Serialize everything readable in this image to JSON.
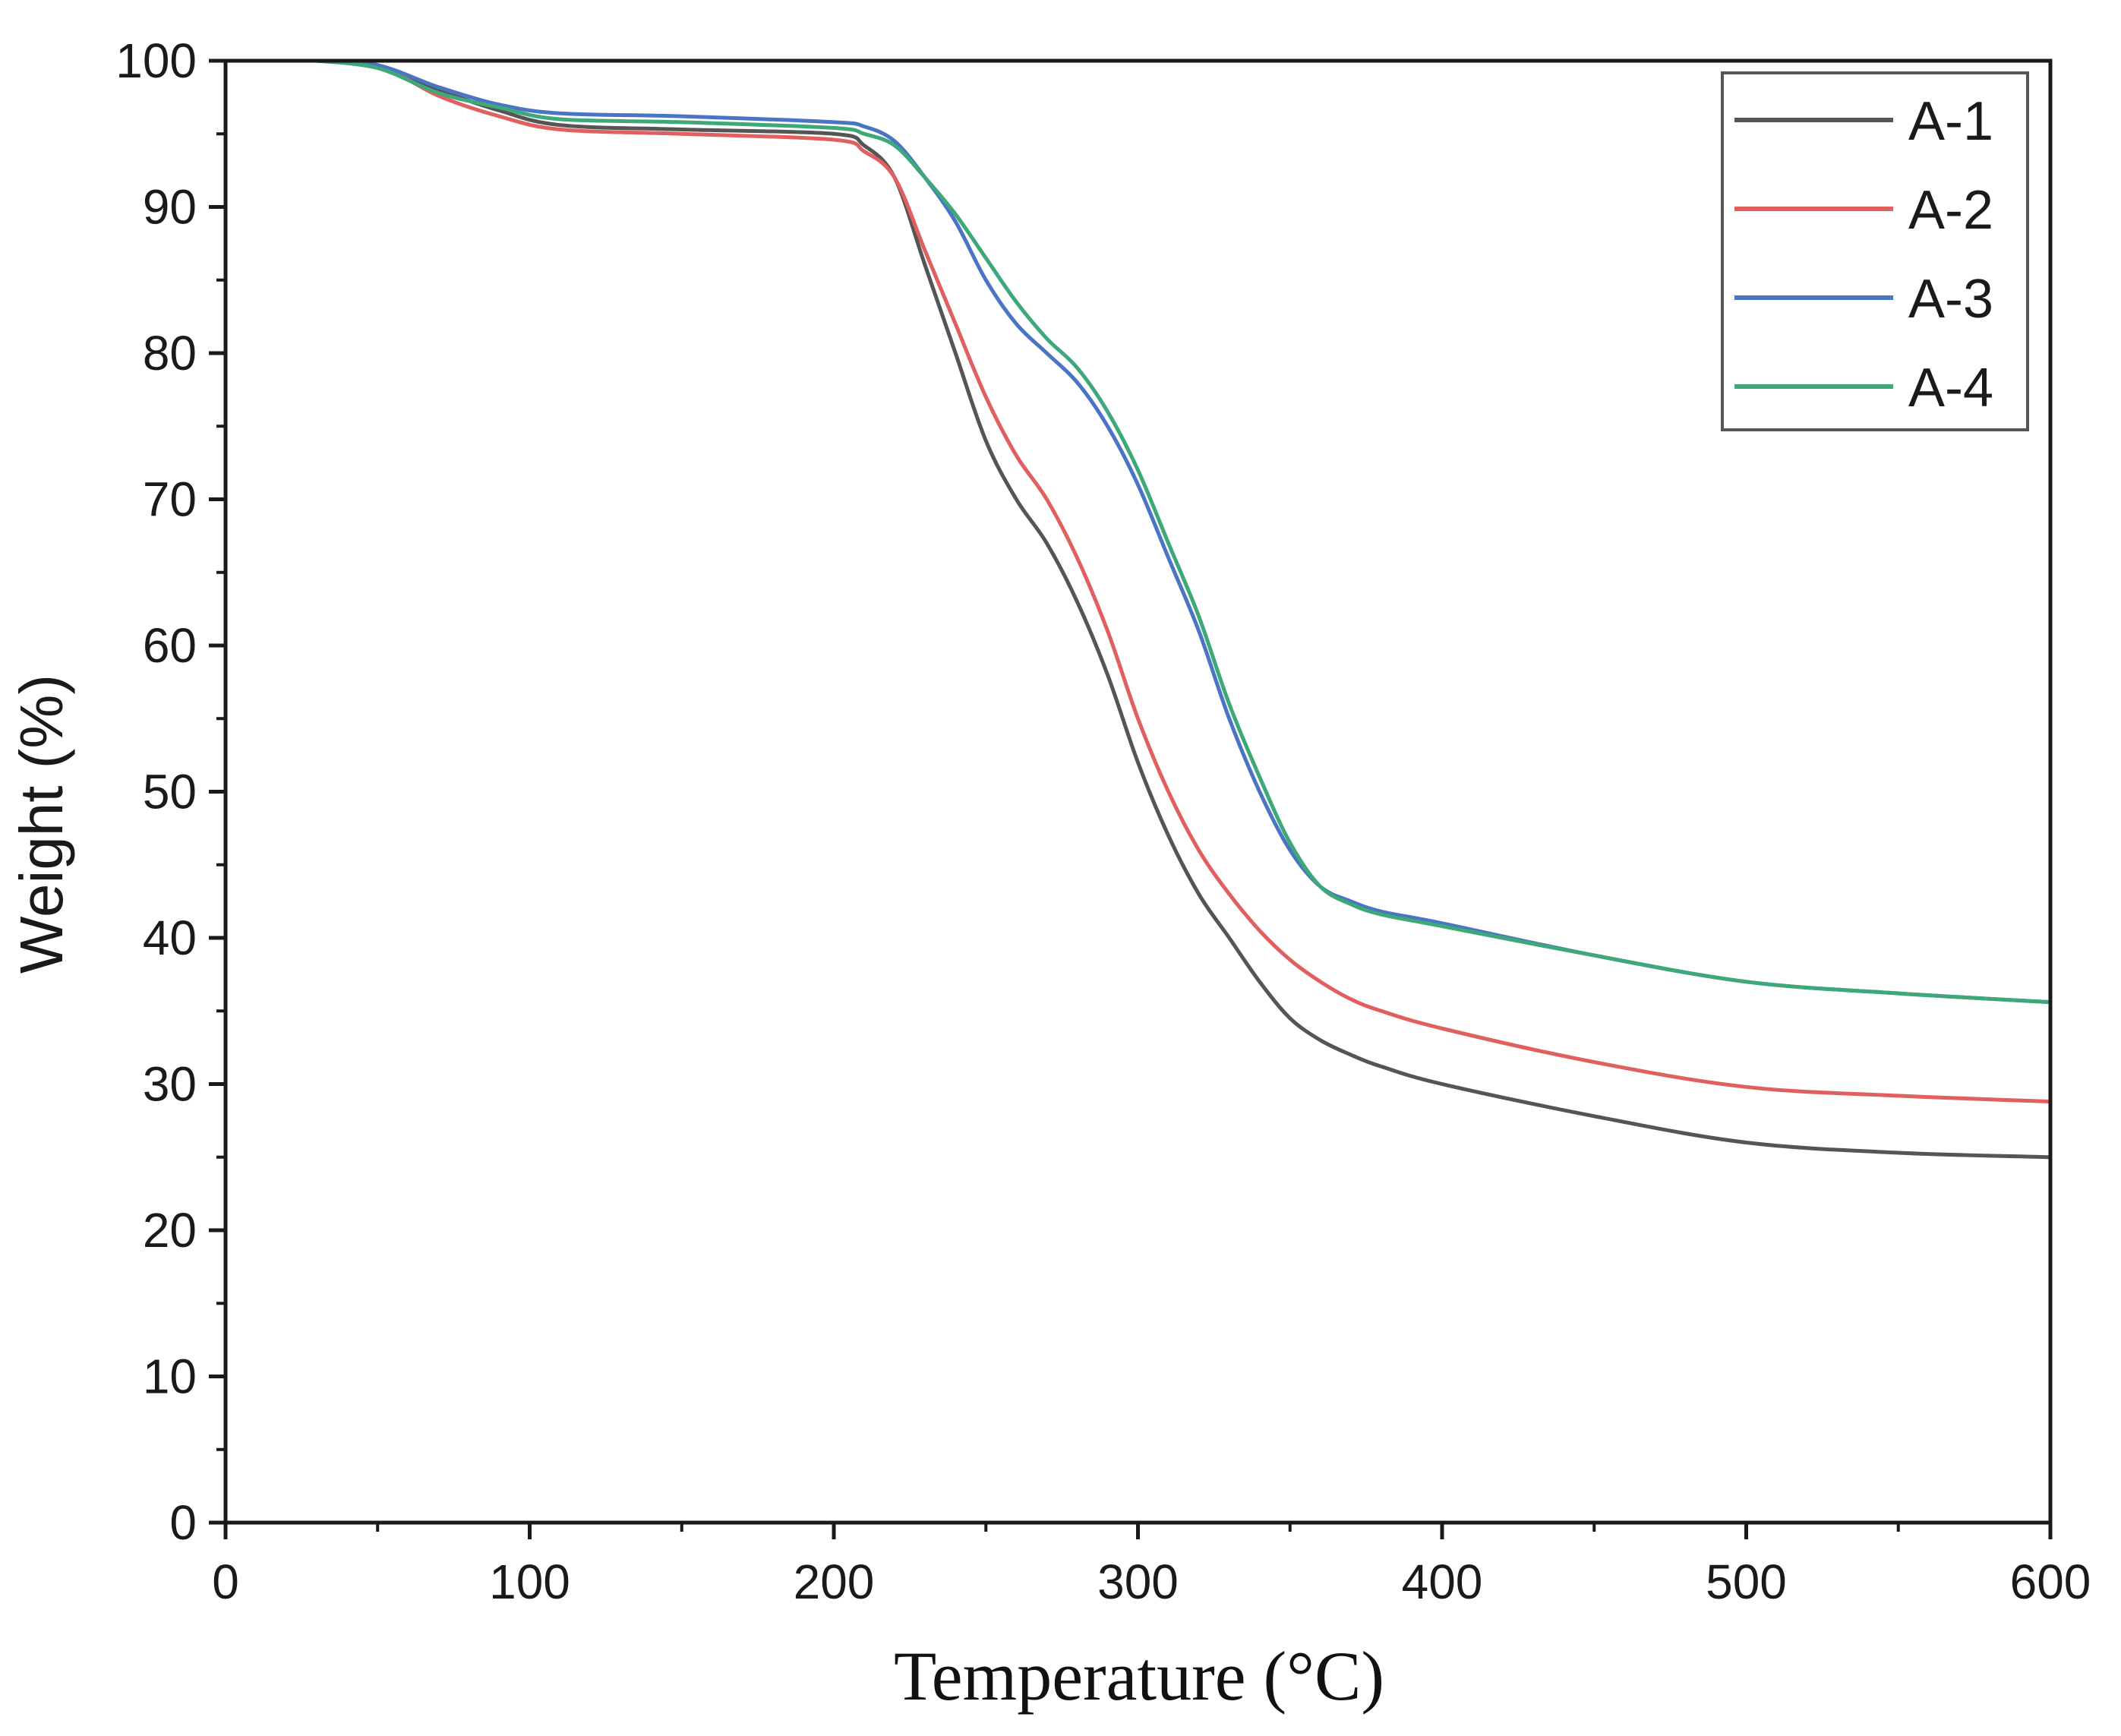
{
  "chart_data": {
    "type": "line",
    "title": "",
    "xlabel": "Temperature (°C)",
    "ylabel": "Weight (%)",
    "xlim": [
      0,
      600
    ],
    "ylim": [
      0,
      100
    ],
    "x_ticks": [
      0,
      100,
      200,
      300,
      400,
      500,
      600
    ],
    "y_ticks": [
      0,
      10,
      20,
      30,
      40,
      50,
      60,
      70,
      80,
      90,
      100
    ],
    "x_tick_labels": [
      "0",
      "100",
      "200",
      "300",
      "400",
      "500",
      "600"
    ],
    "y_tick_labels": [
      "0",
      "10",
      "20",
      "30",
      "40",
      "50",
      "60",
      "70",
      "80",
      "90",
      "100"
    ],
    "grid": false,
    "legend_position": "top-right",
    "series": [
      {
        "name": "A-1",
        "color": "#555555",
        "x": [
          30,
          50,
          70,
          90,
          110,
          150,
          200,
          210,
          220,
          230,
          240,
          250,
          260,
          270,
          280,
          290,
          300,
          310,
          320,
          330,
          340,
          350,
          360,
          370,
          380,
          400,
          450,
          500,
          550,
          600
        ],
        "y": [
          100,
          99.7,
          98,
          96.6,
          95.6,
          95.3,
          95,
          94.2,
          92,
          86,
          80,
          74,
          70,
          67,
          63,
          58,
          52,
          47,
          43,
          40,
          37,
          34.5,
          33,
          32,
          31.2,
          30,
          27.8,
          26,
          25.3,
          25
        ]
      },
      {
        "name": "A-2",
        "color": "#e06060",
        "x": [
          30,
          50,
          70,
          90,
          110,
          150,
          200,
          210,
          220,
          230,
          240,
          250,
          260,
          270,
          280,
          290,
          300,
          310,
          320,
          330,
          340,
          350,
          360,
          370,
          380,
          400,
          450,
          500,
          550,
          600
        ],
        "y": [
          100,
          99.7,
          97.6,
          96.2,
          95.3,
          95,
          94.6,
          93.8,
          92,
          87,
          82,
          77,
          73,
          70,
          66,
          61,
          55,
          50,
          46,
          43,
          40.5,
          38.5,
          37,
          35.8,
          35,
          33.8,
          31.5,
          29.8,
          29.2,
          28.8
        ]
      },
      {
        "name": "A-3",
        "color": "#4a74c4",
        "x": [
          30,
          50,
          70,
          90,
          110,
          150,
          200,
          210,
          220,
          230,
          240,
          250,
          260,
          270,
          280,
          290,
          300,
          310,
          320,
          330,
          340,
          350,
          360,
          370,
          380,
          400,
          450,
          500,
          550,
          600
        ],
        "y": [
          100,
          99.7,
          98.2,
          97,
          96.4,
          96.2,
          95.8,
          95.5,
          94.5,
          92,
          89,
          85,
          82,
          80,
          78,
          75,
          71,
          66,
          61,
          55,
          50,
          46,
          43.5,
          42.5,
          41.8,
          41,
          38.8,
          37,
          36.2,
          35.6
        ]
      },
      {
        "name": "A-4",
        "color": "#3fa878",
        "x": [
          30,
          50,
          70,
          90,
          110,
          150,
          200,
          210,
          220,
          230,
          240,
          250,
          260,
          270,
          280,
          290,
          300,
          310,
          320,
          330,
          340,
          350,
          360,
          370,
          380,
          400,
          450,
          500,
          550,
          600
        ],
        "y": [
          100,
          99.5,
          97.8,
          96.8,
          96,
          95.8,
          95.4,
          95,
          94.2,
          92,
          89.5,
          86.5,
          83.5,
          81,
          79,
          76,
          72,
          67,
          62,
          56,
          51,
          46.5,
          43.5,
          42.3,
          41.6,
          40.8,
          38.8,
          37,
          36.2,
          35.6
        ]
      }
    ]
  }
}
